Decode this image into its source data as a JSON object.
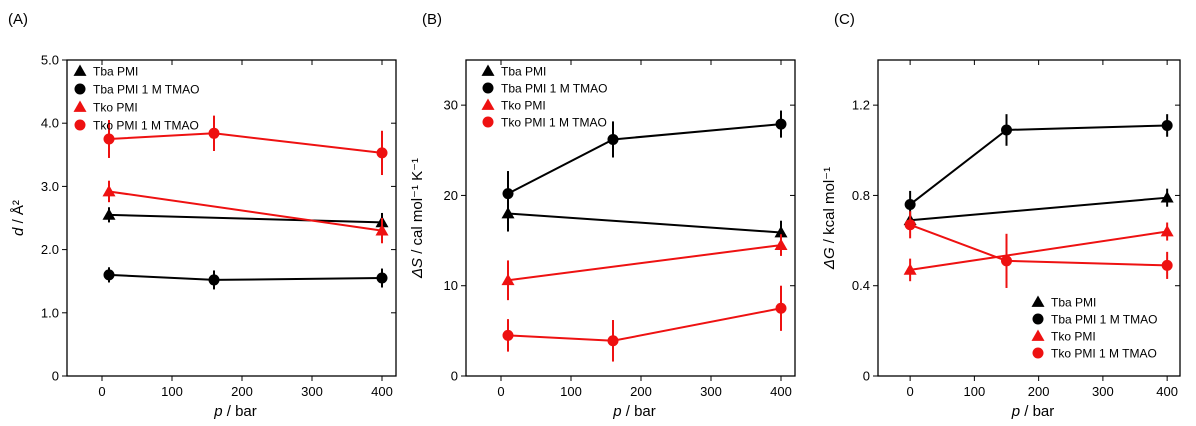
{
  "chart_data": [
    {
      "type": "line",
      "panel_label": "(A)",
      "xlabel_var": "p",
      "xlabel_unit": " / bar",
      "ylabel_var": "d",
      "ylabel_unit": " / Å²",
      "xlim": [
        -50,
        420
      ],
      "ylim": [
        0,
        5
      ],
      "xticks": [
        0,
        100,
        200,
        300,
        400
      ],
      "yticks": [
        0,
        1,
        2,
        3,
        4,
        5
      ],
      "ytick_labels": [
        "0",
        "1.0",
        "2.0",
        "3.0",
        "4.0",
        "5.0"
      ],
      "legend_position": "top-left",
      "series": [
        {
          "name": "Tba PMI",
          "color": "#000000",
          "marker": "triangle",
          "x": [
            10,
            400
          ],
          "y": [
            2.55,
            2.43
          ],
          "err": [
            0.12,
            0.15
          ]
        },
        {
          "name": "Tba PMI  1 M TMAO",
          "color": "#000000",
          "marker": "circle",
          "x": [
            10,
            160,
            400
          ],
          "y": [
            1.6,
            1.52,
            1.55
          ],
          "err": [
            0.12,
            0.15,
            0.15
          ]
        },
        {
          "name": "Tko PMI",
          "color": "#ee1111",
          "marker": "triangle",
          "x": [
            10,
            400
          ],
          "y": [
            2.92,
            2.3
          ],
          "err": [
            0.17,
            0.2
          ]
        },
        {
          "name": "Tko PMI  1 M TMAO",
          "color": "#ee1111",
          "marker": "circle",
          "x": [
            10,
            160,
            400
          ],
          "y": [
            3.75,
            3.84,
            3.53
          ],
          "err": [
            0.3,
            0.28,
            0.35
          ]
        }
      ]
    },
    {
      "type": "line",
      "panel_label": "(B)",
      "xlabel_var": "p",
      "xlabel_unit": " / bar",
      "ylabel_var": "ΔS",
      "ylabel_unit": " / cal mol⁻¹ K⁻¹",
      "xlim": [
        -50,
        420
      ],
      "ylim": [
        0,
        35
      ],
      "xticks": [
        0,
        100,
        200,
        300,
        400
      ],
      "yticks": [
        0,
        10,
        20,
        30
      ],
      "ytick_labels": [
        "0",
        "10",
        "20",
        "30"
      ],
      "legend_position": "top-left",
      "series": [
        {
          "name": "Tba PMI",
          "color": "#000000",
          "marker": "triangle",
          "x": [
            10,
            400
          ],
          "y": [
            18.0,
            15.9
          ],
          "err": [
            2.0,
            1.3
          ]
        },
        {
          "name": "Tba PMI  1 M TMAO",
          "color": "#000000",
          "marker": "circle",
          "x": [
            10,
            160,
            400
          ],
          "y": [
            20.2,
            26.2,
            27.9
          ],
          "err": [
            2.5,
            2.0,
            1.5
          ]
        },
        {
          "name": "Tko PMI",
          "color": "#ee1111",
          "marker": "triangle",
          "x": [
            10,
            400
          ],
          "y": [
            10.6,
            14.5
          ],
          "err": [
            2.2,
            1.2
          ]
        },
        {
          "name": "Tko PMI  1 M TMAO",
          "color": "#ee1111",
          "marker": "circle",
          "x": [
            10,
            160,
            400
          ],
          "y": [
            4.5,
            3.9,
            7.5
          ],
          "err": [
            1.8,
            2.3,
            2.5
          ]
        }
      ]
    },
    {
      "type": "line",
      "panel_label": "(C)",
      "xlabel_var": "p",
      "xlabel_unit": " / bar",
      "ylabel_var": "ΔG",
      "ylabel_unit": " / kcal mol⁻¹",
      "xlim": [
        -50,
        420
      ],
      "ylim": [
        0,
        1.4
      ],
      "xticks": [
        0,
        100,
        200,
        300,
        400
      ],
      "yticks": [
        0,
        0.4,
        0.8,
        1.2
      ],
      "ytick_labels": [
        "0",
        "0.4",
        "0.8",
        "1.2"
      ],
      "legend_position": "bottom-right",
      "series": [
        {
          "name": "Tba PMI",
          "color": "#000000",
          "marker": "triangle",
          "x": [
            0,
            400
          ],
          "y": [
            0.69,
            0.79
          ],
          "err": [
            0.02,
            0.04
          ]
        },
        {
          "name": "Tba PMI  1 M TMAO",
          "color": "#000000",
          "marker": "circle",
          "x": [
            0,
            150,
            400
          ],
          "y": [
            0.76,
            1.09,
            1.11
          ],
          "err": [
            0.06,
            0.07,
            0.05
          ]
        },
        {
          "name": "Tko PMI",
          "color": "#ee1111",
          "marker": "triangle",
          "x": [
            0,
            400
          ],
          "y": [
            0.47,
            0.64
          ],
          "err": [
            0.05,
            0.04
          ]
        },
        {
          "name": "Tko PMI  1 M TMAO",
          "color": "#ee1111",
          "marker": "circle",
          "x": [
            0,
            150,
            400
          ],
          "y": [
            0.67,
            0.51,
            0.49
          ],
          "err": [
            0.06,
            0.12,
            0.06
          ]
        }
      ]
    }
  ]
}
